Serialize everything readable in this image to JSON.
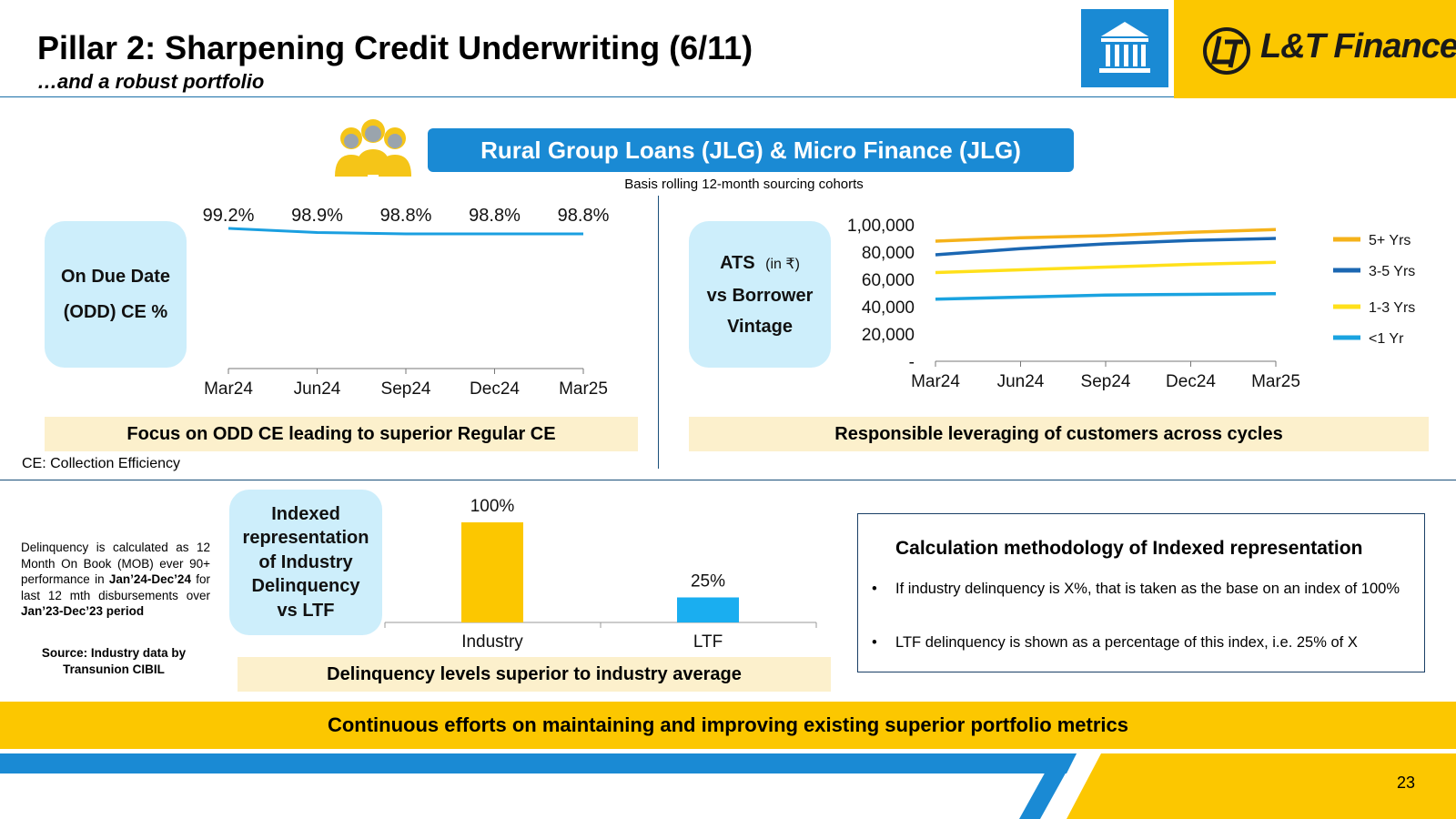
{
  "header": {
    "title": "Pillar 2: Sharpening Credit Underwriting (6/11)",
    "subtitle": "…and a robust portfolio",
    "logo_text": "L&T Finance",
    "bank_icon": "bank-building-icon",
    "accent_yellow": "#fcc700",
    "accent_blue": "#1a8ad4"
  },
  "banner": {
    "title": "Rural Group Loans (JLG) & Micro Finance (JLG)",
    "icon": "women-group-icon",
    "basis_note": "Basis rolling 12-month sourcing cohorts"
  },
  "odd_panel": {
    "label_line1": "On Due Date",
    "label_line2": "(ODD) CE %",
    "footer": "Focus on ODD CE leading to superior Regular CE"
  },
  "ats_panel": {
    "label_line1": "ATS",
    "label_unit": "(in ₹)",
    "label_line2": "vs Borrower",
    "label_line3": "Vintage",
    "footer": "Responsible leveraging of customers across cycles"
  },
  "notes": {
    "ce_note": "CE: Collection Efficiency",
    "delinquency_part1": "Delinquency is calculated as 12 Month On Book (MOB) ever 90+ performance in ",
    "delinquency_bold1": "Jan’24-Dec’24",
    "delinquency_part2": " for last 12 mth disbursements over ",
    "delinquency_bold2": "Jan’23-Dec’23 period",
    "source": "Source: Industry data by Transunion CIBIL"
  },
  "delinquency_panel": {
    "label_line1": "Indexed",
    "label_line2": "representation",
    "label_line3": "of Industry",
    "label_line4": "Delinquency",
    "label_line5": "vs LTF",
    "footer": "Delinquency levels superior to industry average"
  },
  "methodology": {
    "title": "Calculation methodology of Indexed representation",
    "bullets": [
      "If industry delinquency is X%, that is taken as the base on an index of 100%",
      "LTF delinquency is shown as a percentage of this index, i.e. 25% of X"
    ]
  },
  "bottom_banner": "Continuous efforts on maintaining and improving existing superior portfolio metrics",
  "page_number": "23",
  "chart_data": [
    {
      "type": "line",
      "categories": [
        "Mar24",
        "Jun24",
        "Sep24",
        "Dec24",
        "Mar25"
      ],
      "series": [
        {
          "values": [
            99.2,
            98.9,
            98.8,
            98.8,
            98.8
          ],
          "labels": [
            "99.2%",
            "98.9%",
            "98.8%",
            "98.8%",
            "98.8%"
          ],
          "color": "#1a9fe0"
        }
      ]
    },
    {
      "type": "line",
      "categories": [
        "Mar24",
        "Jun24",
        "Sep24",
        "Dec24",
        "Mar25"
      ],
      "ylim": [
        0,
        100000
      ],
      "yticks": [
        "-",
        "20,000",
        "40,000",
        "60,000",
        "80,000",
        "1,00,000"
      ],
      "legend_position": "right",
      "series": [
        {
          "name": "5+ Yrs",
          "color": "#f5b21a",
          "values": [
            88000,
            90500,
            92000,
            94500,
            96500
          ]
        },
        {
          "name": "3-5 Yrs",
          "color": "#1b67b2",
          "values": [
            78000,
            82500,
            86000,
            88500,
            90000
          ]
        },
        {
          "name": "1-3 Yrs",
          "color": "#ffe01a",
          "values": [
            65000,
            67000,
            69000,
            71000,
            72500
          ]
        },
        {
          "name": "<1 Yr",
          "color": "#1aa3e0",
          "values": [
            45500,
            47000,
            48500,
            49000,
            49500
          ]
        }
      ]
    },
    {
      "type": "bar",
      "categories": [
        "Industry",
        "LTF"
      ],
      "values": [
        100,
        25
      ],
      "labels": [
        "100%",
        "25%"
      ],
      "colors": [
        "#fcc700",
        "#1aaef0"
      ],
      "ylim": [
        0,
        100
      ]
    }
  ]
}
